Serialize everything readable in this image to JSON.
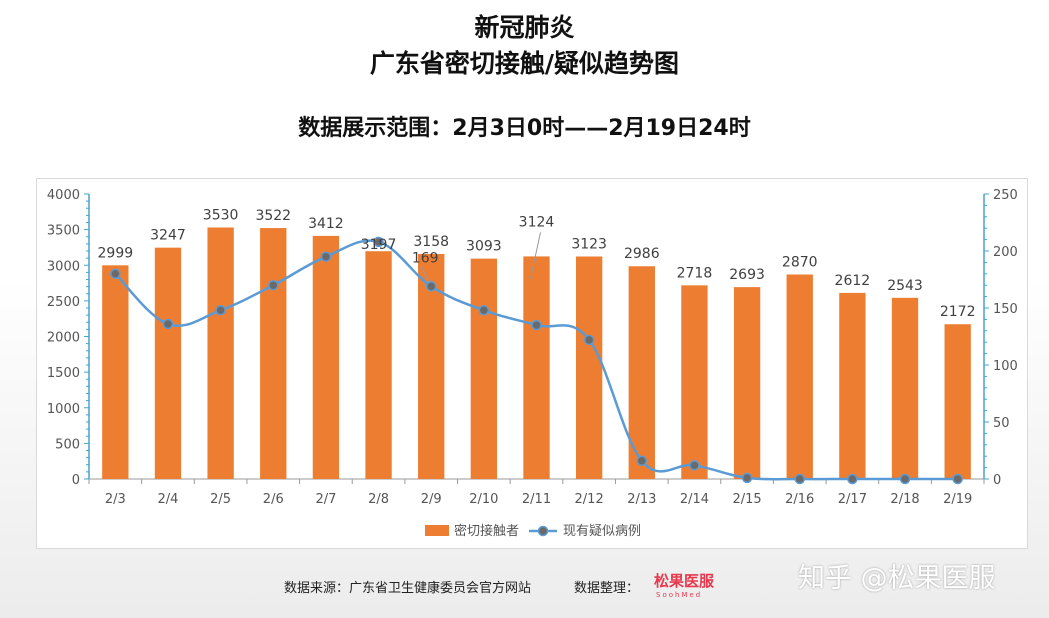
{
  "header": {
    "title_line1": "新冠肺炎",
    "title_line2": "广东省密切接触/疑似趋势图",
    "range": "数据展示范围：2月3日0时——2月19日24时"
  },
  "footer": {
    "source": "数据来源：广东省卫生健康委员会官方网站",
    "organizer": "数据整理：",
    "logo_text": "松果医服",
    "logo_sub": "SoohMed",
    "watermark": "知乎 @松果医服"
  },
  "colors": {
    "bar": "#ed7d31",
    "line": "#5b9bd5",
    "marker": "#6a6a6a",
    "axis": "#4aa3c8"
  },
  "chart_data": {
    "type": "bar+line",
    "categories": [
      "2/3",
      "2/4",
      "2/5",
      "2/6",
      "2/7",
      "2/8",
      "2/9",
      "2/10",
      "2/11",
      "2/12",
      "2/13",
      "2/14",
      "2/15",
      "2/16",
      "2/17",
      "2/18",
      "2/19"
    ],
    "series": [
      {
        "name": "密切接触者",
        "type": "bar",
        "axis": "left",
        "values": [
          2999,
          3247,
          3530,
          3522,
          3412,
          3197,
          3158,
          3093,
          3124,
          3123,
          2986,
          2718,
          2693,
          2870,
          2612,
          2543,
          2172
        ]
      },
      {
        "name": "现有疑似病例",
        "type": "line",
        "axis": "right",
        "values": [
          180,
          136,
          148,
          170,
          195,
          208,
          169,
          148,
          135,
          122,
          16,
          12,
          1,
          0,
          0,
          0,
          0
        ]
      }
    ],
    "ylim_left": [
      0,
      4000
    ],
    "yticks_left": [
      0,
      500,
      1000,
      1500,
      2000,
      2500,
      3000,
      3500,
      4000
    ],
    "ylim_right": [
      0,
      250
    ],
    "yticks_right": [
      0,
      50,
      100,
      150,
      200,
      250
    ],
    "line_labels": [
      {
        "index": 6,
        "text": "169"
      }
    ],
    "legend_position": "bottom"
  }
}
